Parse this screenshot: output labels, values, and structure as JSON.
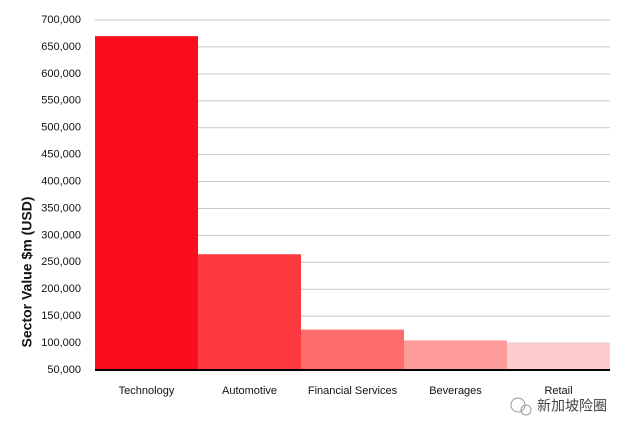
{
  "chart_data": {
    "type": "bar",
    "y_label": "Sector Value $m (USD)",
    "categories": [
      "Technology",
      "Automotive",
      "Financial Services",
      "Beverages",
      "Retail"
    ],
    "values": [
      670000,
      265000,
      125000,
      105000,
      100000
    ],
    "colors": [
      "#fc0d1b",
      "#fc3a3f",
      "#fd6b6c",
      "#fd9a9a",
      "#fdcbcb"
    ],
    "ylim": [
      50000,
      700000
    ],
    "yticks": [
      {
        "value": 50000,
        "label": "50,000"
      },
      {
        "value": 100000,
        "label": "100,000"
      },
      {
        "value": 150000,
        "label": "150,000"
      },
      {
        "value": 200000,
        "label": "200,000"
      },
      {
        "value": 250000,
        "label": "250,000"
      },
      {
        "value": 300000,
        "label": "300,000"
      },
      {
        "value": 350000,
        "label": "350,000"
      },
      {
        "value": 400000,
        "label": "400,000"
      },
      {
        "value": 450000,
        "label": "450,000"
      },
      {
        "value": 500000,
        "label": "500,000"
      },
      {
        "value": 550000,
        "label": "550,000"
      },
      {
        "value": 600000,
        "label": "600,000"
      },
      {
        "value": 650000,
        "label": "650,000"
      },
      {
        "value": 700000,
        "label": "700,000"
      }
    ],
    "grid": true
  },
  "watermark": "新加坡险圈"
}
